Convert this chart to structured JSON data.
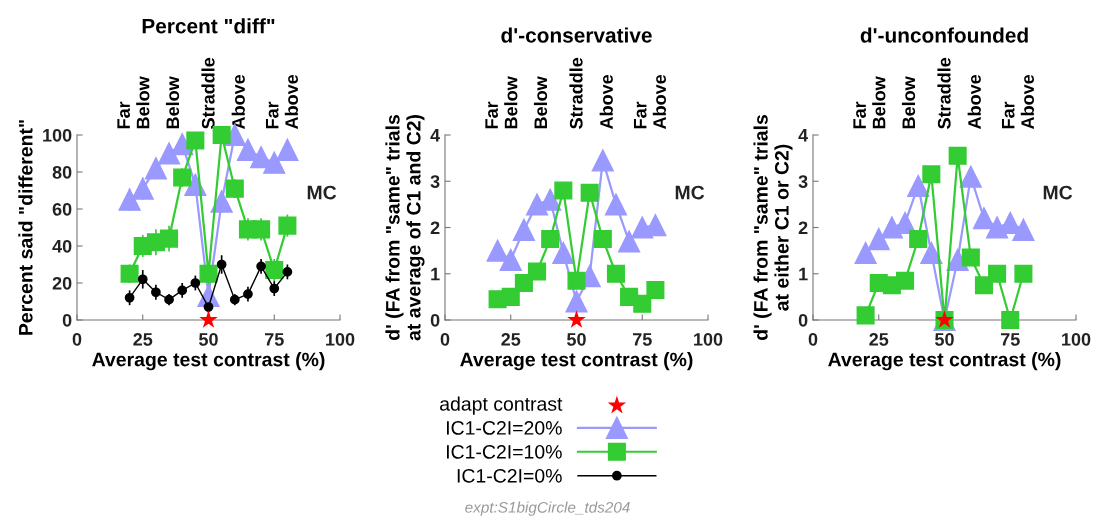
{
  "chart_data": [
    {
      "type": "line",
      "title": "Percent \"diff\"",
      "xlabel": "Average test contrast (%)",
      "ylabel": "Percent said \"different\"",
      "x": [
        20,
        25,
        30,
        35,
        40,
        45,
        50,
        55,
        60,
        65,
        70,
        75,
        80
      ],
      "xlim": [
        0,
        100
      ],
      "xticks": [
        0,
        25,
        50,
        75,
        100
      ],
      "ylim": [
        0,
        100
      ],
      "yticks": [
        0,
        20,
        40,
        60,
        80,
        100
      ],
      "grid": false,
      "legend": "bottom",
      "annotations": [
        "Far\nBelow",
        "Below",
        "Straddle",
        "Above",
        "Far\nAbove",
        "MC"
      ],
      "series": [
        {
          "name": "adapt contrast",
          "type": "scatter",
          "color": "#ff0000",
          "marker": "star",
          "values": [
            null,
            null,
            null,
            null,
            null,
            null,
            0,
            null,
            null,
            null,
            null,
            null,
            null
          ]
        },
        {
          "name": "IC1-C2I=20%",
          "color": "#9999ff",
          "marker": "triangle",
          "values": [
            65,
            71,
            82,
            90,
            95,
            73,
            13,
            64,
            100,
            92,
            88,
            85,
            92
          ],
          "errors": [
            6,
            6,
            5,
            5,
            4,
            6,
            4,
            6,
            3,
            4,
            4,
            5,
            4
          ]
        },
        {
          "name": "IC1-C2I=10%",
          "color": "#33cc33",
          "marker": "square",
          "values": [
            25,
            40,
            42,
            44,
            77,
            97,
            25,
            100,
            71,
            49,
            49,
            27,
            51
          ],
          "errors": [
            5,
            6,
            7,
            7,
            5,
            3,
            6,
            2,
            5,
            6,
            6,
            6,
            6
          ]
        },
        {
          "name": "IC1-C2I=0%",
          "color": "#000000",
          "marker": "circle",
          "values": [
            12,
            22,
            15,
            11,
            16,
            20,
            7,
            30,
            11,
            14,
            29,
            17,
            26
          ],
          "errors": [
            4,
            5,
            4,
            3,
            4,
            4,
            3,
            5,
            3,
            4,
            4,
            4,
            4
          ]
        }
      ]
    },
    {
      "type": "line",
      "title": "d'-conservative",
      "xlabel": "Average test contrast (%)",
      "ylabel": "d' (FA from \"same\" trials\nat average of C1 and C2)",
      "x": [
        20,
        25,
        30,
        35,
        40,
        45,
        50,
        55,
        60,
        65,
        70,
        75,
        80
      ],
      "xlim": [
        0,
        100
      ],
      "xticks": [
        0,
        25,
        50,
        75,
        100
      ],
      "ylim": [
        0,
        4
      ],
      "yticks": [
        0,
        1,
        2,
        3,
        4
      ],
      "grid": false,
      "annotations": [
        "Far\nBelow",
        "Below",
        "Straddle",
        "Above",
        "Far\nAbove",
        "MC",
        "expt:S1bigCircle_tds204"
      ],
      "series": [
        {
          "type": "scatter",
          "color": "#ff0000",
          "marker": "star",
          "values": [
            null,
            null,
            null,
            null,
            null,
            null,
            0,
            null,
            null,
            null,
            null,
            null,
            null
          ]
        },
        {
          "color": "#9999ff",
          "marker": "triangle",
          "values": [
            1.5,
            1.3,
            1.95,
            2.5,
            2.6,
            1.45,
            0.4,
            0.95,
            3.45,
            2.5,
            1.7,
            2.0,
            2.05
          ]
        },
        {
          "color": "#33cc33",
          "marker": "square",
          "values": [
            0.45,
            0.5,
            0.8,
            1.05,
            1.75,
            2.8,
            0.85,
            2.75,
            1.75,
            1.0,
            0.5,
            0.35,
            0.65
          ]
        }
      ]
    },
    {
      "type": "line",
      "title": "d'-unconfounded",
      "xlabel": "Average test contrast (%)",
      "ylabel": "d' (FA from \"same\" trials\nat either C1 or C2)",
      "x": [
        20,
        25,
        30,
        35,
        40,
        45,
        50,
        55,
        60,
        65,
        70,
        75,
        80
      ],
      "xlim": [
        0,
        100
      ],
      "xticks": [
        0,
        25,
        50,
        75,
        100
      ],
      "ylim": [
        0,
        4
      ],
      "yticks": [
        0,
        1,
        2,
        3,
        4
      ],
      "grid": false,
      "annotations": [
        "Far\nBelow",
        "Below",
        "Straddle",
        "Above",
        "Far\nAbove",
        "MC"
      ],
      "series": [
        {
          "type": "scatter",
          "color": "#ff0000",
          "marker": "star",
          "values": [
            null,
            null,
            null,
            null,
            null,
            null,
            0,
            null,
            null,
            null,
            null,
            null,
            null
          ]
        },
        {
          "color": "#9999ff",
          "marker": "triangle",
          "values": [
            1.45,
            1.75,
            2.0,
            2.1,
            2.9,
            1.45,
            0,
            1.3,
            3.1,
            2.2,
            2.0,
            2.1,
            1.95
          ]
        },
        {
          "color": "#33cc33",
          "marker": "square",
          "values": [
            0.1,
            0.8,
            0.75,
            0.85,
            1.75,
            3.15,
            0,
            3.55,
            1.35,
            0.75,
            1.0,
            0,
            1.0
          ]
        }
      ]
    }
  ]
}
